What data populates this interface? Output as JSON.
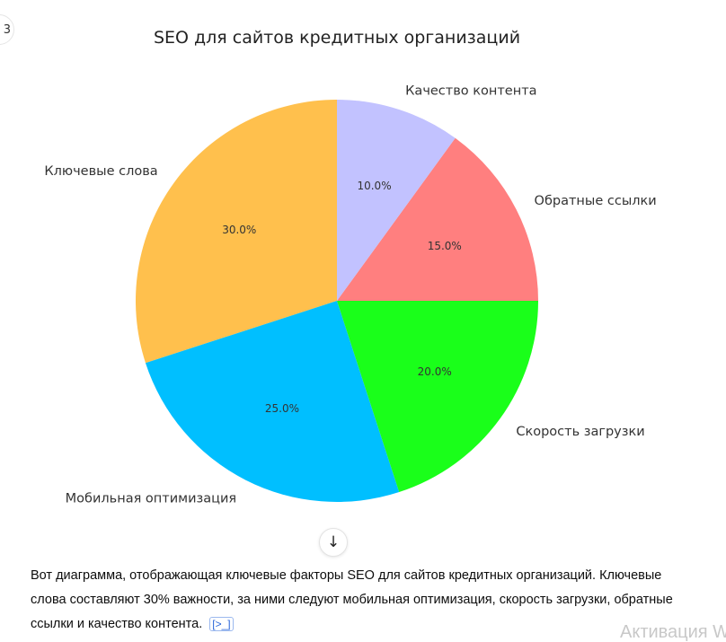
{
  "chart_data": {
    "type": "pie",
    "title": "SEO для сайтов кредитных организаций",
    "start_angle": 90,
    "direction": "counterclockwise",
    "slices": [
      {
        "label": "Ключевые слова",
        "value": 30,
        "pct_label": "30.0%",
        "color": "#ffc04d"
      },
      {
        "label": "Мобильная оптимизация",
        "value": 25,
        "pct_label": "25.0%",
        "color": "#00bfff"
      },
      {
        "label": "Скорость загрузки",
        "value": 20,
        "pct_label": "20.0%",
        "color": "#1aff1a"
      },
      {
        "label": "Обратные ссылки",
        "value": 15,
        "pct_label": "15.0%",
        "color": "#ff7f7f"
      },
      {
        "label": "Качество контента",
        "value": 10,
        "pct_label": "10.0%",
        "color": "#c2c2ff"
      }
    ]
  },
  "answer": {
    "text": "Вот диаграмма, отображающая ключевые факторы SEO для сайтов кредитных организаций. Ключевые слова составляют 30% важности, за ними следуют мобильная оптимизация, скорость загрузки, обратные ссылки и качество контента.",
    "citation_icon": "code-interpreter-icon",
    "citation_glyph": "[>_]"
  },
  "scroll_button": {
    "icon": "arrow-down-icon",
    "glyph": "↓"
  },
  "corner_button": {
    "glyph": "3"
  },
  "watermark": "Активация Wi"
}
